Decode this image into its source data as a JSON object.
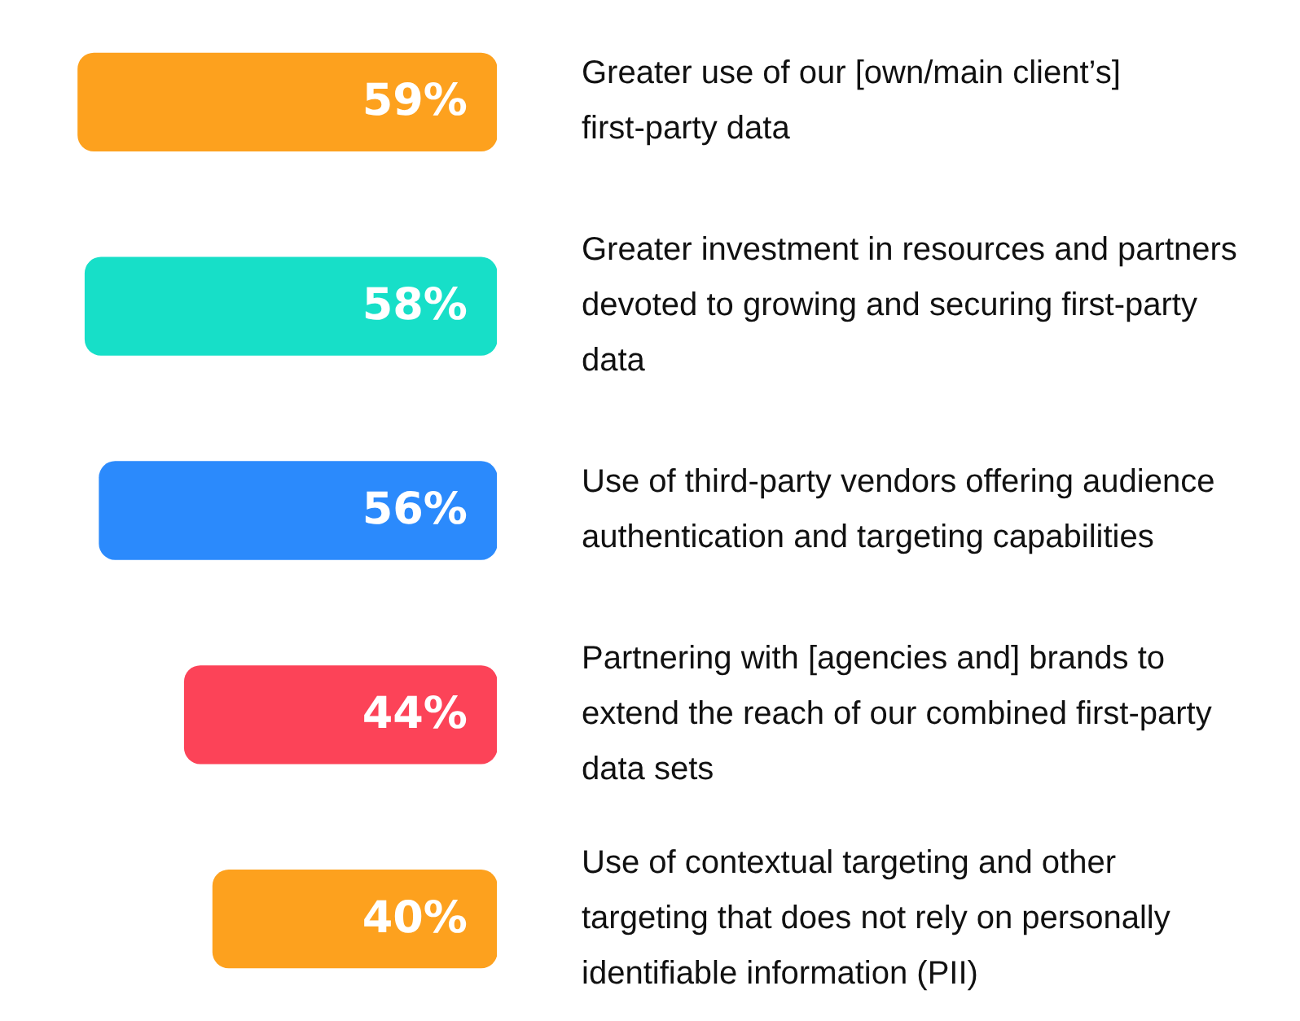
{
  "chart_data": {
    "type": "bar",
    "orientation": "horizontal",
    "categories": [
      "Greater use of our [own/main client’s] first-party data",
      "Greater investment in resources and partners devoted to growing and securing first-party data",
      "Use of third-party vendors offering audience authentication and targeting capabilities",
      "Partnering with [agencies and] brands to extend the reach of our combined first-party data sets",
      "Use of contextual targeting and other targeting that does not rely on personally identifiable information (PII)"
    ],
    "values": [
      59,
      58,
      56,
      44,
      40
    ],
    "colors": [
      "#fda11e",
      "#17dfc8",
      "#2b8afc",
      "#fc4358",
      "#fda11e"
    ],
    "value_labels": [
      "59%",
      "58%",
      "56%",
      "44%",
      "40%"
    ],
    "legend": false,
    "tick_labels": "y"
  }
}
